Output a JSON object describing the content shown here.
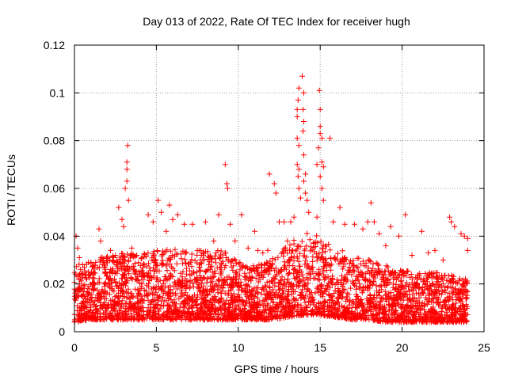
{
  "chart_data": {
    "type": "scatter",
    "title": "Day 013 of 2022, Rate Of TEC Index for receiver hugh",
    "xlabel": "GPS time / hours",
    "ylabel": "ROTI / TECUs",
    "xlim": [
      0,
      25
    ],
    "ylim": [
      0,
      0.12
    ],
    "xticks": [
      0,
      5,
      10,
      15,
      20,
      25
    ],
    "xtick_labels": [
      "0",
      "5",
      "10",
      "15",
      "20",
      "25"
    ],
    "yticks": [
      0,
      0.02,
      0.04,
      0.06,
      0.08,
      0.1,
      0.12
    ],
    "ytick_labels": [
      "0",
      "0.02",
      "0.04",
      "0.06",
      "0.08",
      "0.1",
      "0.12"
    ],
    "grid": true,
    "marker": "+",
    "color": "#ff0000",
    "series": [
      {
        "name": "ROTI",
        "points": [
          [
            0.1,
            0.04
          ],
          [
            0.2,
            0.035
          ],
          [
            0.3,
            0.031
          ],
          [
            0.6,
            0.027
          ],
          [
            1.0,
            0.029
          ],
          [
            1.5,
            0.043
          ],
          [
            1.6,
            0.038
          ],
          [
            2.2,
            0.034
          ],
          [
            2.5,
            0.032
          ],
          [
            2.7,
            0.052
          ],
          [
            2.9,
            0.047
          ],
          [
            3.0,
            0.044
          ],
          [
            3.1,
            0.06
          ],
          [
            3.2,
            0.063
          ],
          [
            3.2,
            0.068
          ],
          [
            3.2,
            0.071
          ],
          [
            3.25,
            0.078
          ],
          [
            3.3,
            0.055
          ],
          [
            3.5,
            0.035
          ],
          [
            3.8,
            0.032
          ],
          [
            4.5,
            0.049
          ],
          [
            4.8,
            0.046
          ],
          [
            5.1,
            0.055
          ],
          [
            5.3,
            0.05
          ],
          [
            5.6,
            0.042
          ],
          [
            5.8,
            0.053
          ],
          [
            6.0,
            0.047
          ],
          [
            6.3,
            0.049
          ],
          [
            6.7,
            0.045
          ],
          [
            7.2,
            0.045
          ],
          [
            7.5,
            0.034
          ],
          [
            8.0,
            0.046
          ],
          [
            8.5,
            0.038
          ],
          [
            8.8,
            0.049
          ],
          [
            9.2,
            0.07
          ],
          [
            9.3,
            0.062
          ],
          [
            9.35,
            0.06
          ],
          [
            9.5,
            0.045
          ],
          [
            9.8,
            0.038
          ],
          [
            10.2,
            0.049
          ],
          [
            10.6,
            0.035
          ],
          [
            11.0,
            0.042
          ],
          [
            11.2,
            0.034
          ],
          [
            11.5,
            0.033
          ],
          [
            11.8,
            0.034
          ],
          [
            11.9,
            0.066
          ],
          [
            12.2,
            0.062
          ],
          [
            12.3,
            0.058
          ],
          [
            12.5,
            0.046
          ],
          [
            12.8,
            0.046
          ],
          [
            13.0,
            0.038
          ],
          [
            13.2,
            0.046
          ],
          [
            13.4,
            0.048
          ],
          [
            13.6,
            0.093
          ],
          [
            13.65,
            0.097
          ],
          [
            13.6,
            0.09
          ],
          [
            13.6,
            0.081
          ],
          [
            13.7,
            0.102
          ],
          [
            13.7,
            0.078
          ],
          [
            13.6,
            0.07
          ],
          [
            13.7,
            0.068
          ],
          [
            13.65,
            0.065
          ],
          [
            13.7,
            0.06
          ],
          [
            13.8,
            0.056
          ],
          [
            13.9,
            0.107
          ],
          [
            14.0,
            0.1
          ],
          [
            13.95,
            0.093
          ],
          [
            14.0,
            0.088
          ],
          [
            13.95,
            0.084
          ],
          [
            14.0,
            0.074
          ],
          [
            14.1,
            0.066
          ],
          [
            14.0,
            0.063
          ],
          [
            14.1,
            0.058
          ],
          [
            14.2,
            0.055
          ],
          [
            14.3,
            0.05
          ],
          [
            14.8,
            0.07
          ],
          [
            14.9,
            0.077
          ],
          [
            14.95,
            0.101
          ],
          [
            15.0,
            0.093
          ],
          [
            15.0,
            0.086
          ],
          [
            15.0,
            0.083
          ],
          [
            15.1,
            0.081
          ],
          [
            15.1,
            0.071
          ],
          [
            15.2,
            0.069
          ],
          [
            15.0,
            0.065
          ],
          [
            15.1,
            0.06
          ],
          [
            15.2,
            0.055
          ],
          [
            14.8,
            0.048
          ],
          [
            15.6,
            0.081
          ],
          [
            15.8,
            0.046
          ],
          [
            16.2,
            0.052
          ],
          [
            16.5,
            0.045
          ],
          [
            17.1,
            0.045
          ],
          [
            17.6,
            0.043
          ],
          [
            17.9,
            0.046
          ],
          [
            18.1,
            0.054
          ],
          [
            18.3,
            0.046
          ],
          [
            18.6,
            0.041
          ],
          [
            19.0,
            0.036
          ],
          [
            19.3,
            0.044
          ],
          [
            19.8,
            0.04
          ],
          [
            20.2,
            0.049
          ],
          [
            20.6,
            0.032
          ],
          [
            21.2,
            0.042
          ],
          [
            21.6,
            0.033
          ],
          [
            22.0,
            0.034
          ],
          [
            22.5,
            0.03
          ],
          [
            22.9,
            0.048
          ],
          [
            23.0,
            0.046
          ],
          [
            23.2,
            0.044
          ],
          [
            23.6,
            0.041
          ],
          [
            23.8,
            0.04
          ],
          [
            24.0,
            0.039
          ],
          [
            24.0,
            0.034
          ]
        ],
        "baseline_envelope": {
          "x_hours": [
            0,
            1,
            2,
            3,
            4,
            5,
            6,
            7,
            8,
            9,
            10,
            11,
            12,
            13,
            14,
            15,
            16,
            17,
            18,
            19,
            20,
            21,
            22,
            23,
            24
          ],
          "typical_roti_min": [
            0.004,
            0.005,
            0.005,
            0.005,
            0.005,
            0.005,
            0.005,
            0.005,
            0.005,
            0.005,
            0.005,
            0.005,
            0.005,
            0.006,
            0.007,
            0.007,
            0.006,
            0.005,
            0.005,
            0.004,
            0.004,
            0.004,
            0.004,
            0.004,
            0.004
          ],
          "typical_roti_max": [
            0.028,
            0.03,
            0.032,
            0.033,
            0.033,
            0.034,
            0.035,
            0.034,
            0.034,
            0.034,
            0.03,
            0.028,
            0.03,
            0.036,
            0.042,
            0.04,
            0.035,
            0.032,
            0.03,
            0.028,
            0.026,
            0.025,
            0.025,
            0.024,
            0.022
          ]
        }
      }
    ]
  }
}
